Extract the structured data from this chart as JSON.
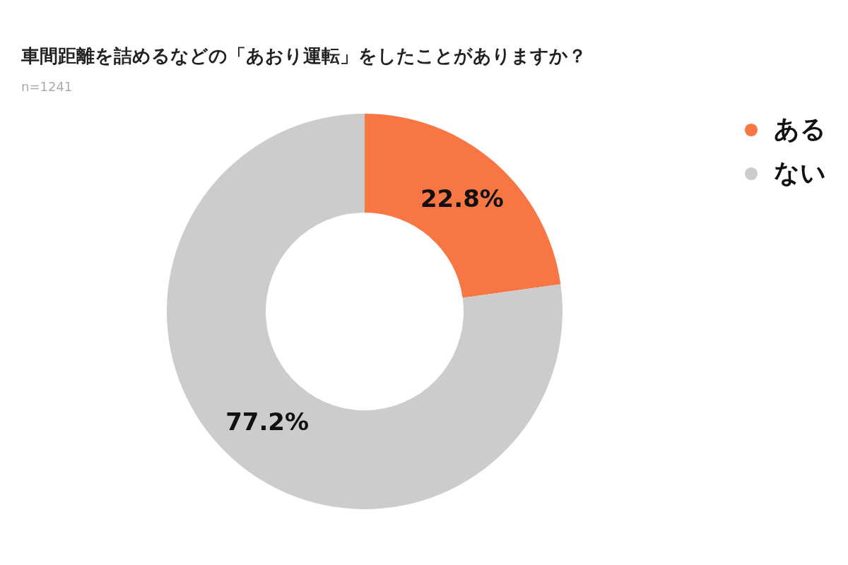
{
  "chart_data": {
    "type": "donut",
    "title": "車間距離を詰めるなどの「あおり運転」をしたことがありますか？",
    "subtitle": "n=1241",
    "categories": [
      "ある",
      "ない"
    ],
    "values": [
      22.8,
      77.2
    ],
    "colors": [
      "#f77643",
      "#cccccc"
    ],
    "value_labels": [
      "22.8%",
      "77.2%"
    ],
    "legend": "top right"
  }
}
